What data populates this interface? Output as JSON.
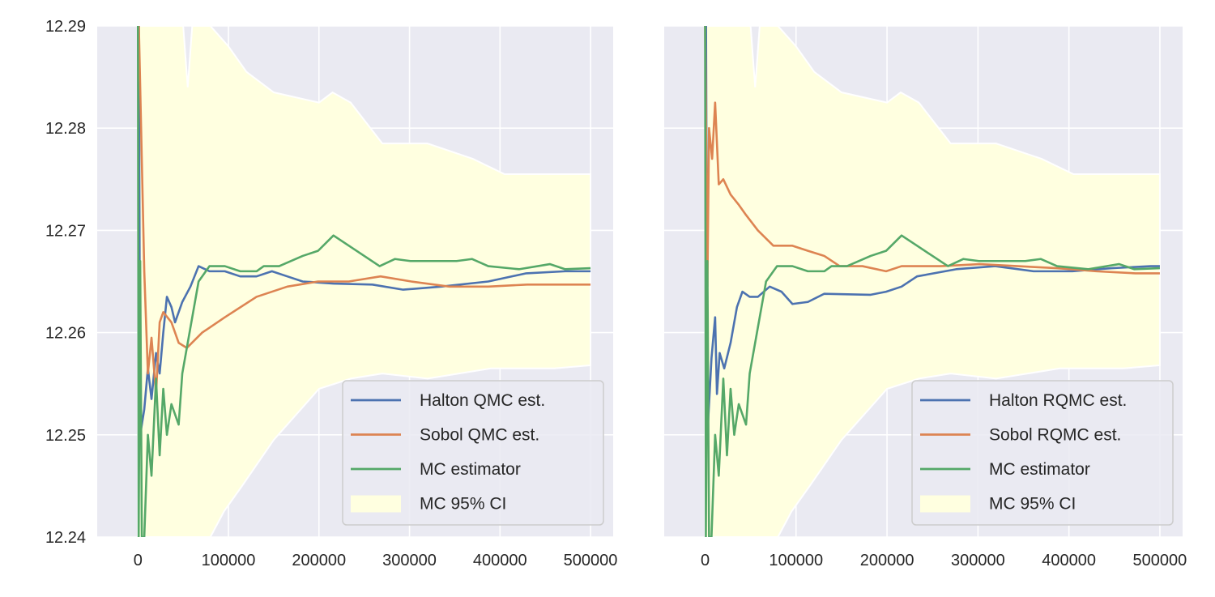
{
  "colors": {
    "background": "#eaeaf2",
    "grid": "#ffffff",
    "ci_fill": "#ffffe0",
    "blue": "#4c72b0",
    "orange": "#dd8452",
    "green": "#55a868"
  },
  "chart_data": [
    {
      "type": "line",
      "ylim": [
        12.24,
        12.29
      ],
      "xlim": [
        -45000,
        525000
      ],
      "grid": true,
      "legend_position": "lower-right",
      "yticks": [
        "12.24",
        "12.25",
        "12.26",
        "12.27",
        "12.28",
        "12.29"
      ],
      "xticks": [
        "0",
        "100000",
        "200000",
        "300000",
        "400000",
        "500000"
      ],
      "ci": {
        "name": "MC 95% CI",
        "upper": [
          [
            0,
            12.3
          ],
          [
            50000,
            12.3
          ],
          [
            55000,
            12.284
          ],
          [
            60000,
            12.29
          ],
          [
            80000,
            12.29
          ],
          [
            100000,
            12.288
          ],
          [
            120000,
            12.2855
          ],
          [
            150000,
            12.2835
          ],
          [
            200000,
            12.2825
          ],
          [
            215000,
            12.2835
          ],
          [
            235000,
            12.2825
          ],
          [
            270000,
            12.2785
          ],
          [
            320000,
            12.2785
          ],
          [
            370000,
            12.277
          ],
          [
            405000,
            12.2755
          ],
          [
            440000,
            12.2755
          ],
          [
            475000,
            12.2755
          ],
          [
            500000,
            12.2755
          ]
        ],
        "lower": [
          [
            0,
            12.23
          ],
          [
            80000,
            12.23
          ],
          [
            95000,
            12.2425
          ],
          [
            115000,
            12.245
          ],
          [
            150000,
            12.2495
          ],
          [
            200000,
            12.2545
          ],
          [
            235000,
            12.2555
          ],
          [
            270000,
            12.256
          ],
          [
            320000,
            12.2555
          ],
          [
            390000,
            12.2565
          ],
          [
            460000,
            12.2565
          ],
          [
            500000,
            12.2568
          ]
        ]
      },
      "series": [
        {
          "name": "Halton QMC est.",
          "color": "#4c72b0",
          "points": [
            [
              1000,
              12.29
            ],
            [
              2500,
              12.25
            ],
            [
              7000,
              12.2525
            ],
            [
              11000,
              12.2565
            ],
            [
              15000,
              12.2535
            ],
            [
              20000,
              12.258
            ],
            [
              24000,
              12.256
            ],
            [
              28000,
              12.26
            ],
            [
              32000,
              12.2635
            ],
            [
              37000,
              12.2625
            ],
            [
              41000,
              12.261
            ],
            [
              49000,
              12.263
            ],
            [
              58000,
              12.2645
            ],
            [
              67000,
              12.2665
            ],
            [
              79000,
              12.266
            ],
            [
              96000,
              12.266
            ],
            [
              113000,
              12.2655
            ],
            [
              131000,
              12.2655
            ],
            [
              148000,
              12.266
            ],
            [
              165000,
              12.2655
            ],
            [
              182000,
              12.265
            ],
            [
              216000,
              12.2648
            ],
            [
              259000,
              12.2647
            ],
            [
              293000,
              12.2642
            ],
            [
              335000,
              12.2645
            ],
            [
              387000,
              12.265
            ],
            [
              429000,
              12.2658
            ],
            [
              472000,
              12.266
            ],
            [
              500000,
              12.266
            ]
          ]
        },
        {
          "name": "Sobol QMC est.",
          "color": "#dd8452",
          "points": [
            [
              1000,
              12.29
            ],
            [
              3500,
              12.28
            ],
            [
              7000,
              12.266
            ],
            [
              11000,
              12.256
            ],
            [
              15000,
              12.2595
            ],
            [
              20000,
              12.254
            ],
            [
              24000,
              12.261
            ],
            [
              28000,
              12.262
            ],
            [
              37000,
              12.261
            ],
            [
              45000,
              12.259
            ],
            [
              54000,
              12.2585
            ],
            [
              71000,
              12.26
            ],
            [
              96000,
              12.2615
            ],
            [
              131000,
              12.2635
            ],
            [
              165000,
              12.2645
            ],
            [
              199000,
              12.265
            ],
            [
              233000,
              12.265
            ],
            [
              268000,
              12.2655
            ],
            [
              302000,
              12.265
            ],
            [
              344000,
              12.2645
            ],
            [
              387000,
              12.2645
            ],
            [
              430000,
              12.2647
            ],
            [
              500000,
              12.2647
            ]
          ]
        },
        {
          "name": "MC estimator",
          "color": "#55a868",
          "points": [
            [
              0,
              12.29
            ],
            [
              800,
              12.24
            ],
            [
              2500,
              12.267
            ],
            [
              4300,
              12.24
            ],
            [
              7000,
              12.24
            ],
            [
              11000,
              12.25
            ],
            [
              15000,
              12.246
            ],
            [
              20000,
              12.2555
            ],
            [
              24000,
              12.248
            ],
            [
              28000,
              12.2545
            ],
            [
              32000,
              12.25
            ],
            [
              37000,
              12.253
            ],
            [
              45000,
              12.251
            ],
            [
              49000,
              12.256
            ],
            [
              58000,
              12.2605
            ],
            [
              67000,
              12.265
            ],
            [
              79000,
              12.2665
            ],
            [
              96000,
              12.2665
            ],
            [
              113000,
              12.266
            ],
            [
              131000,
              12.266
            ],
            [
              139000,
              12.2665
            ],
            [
              156000,
              12.2665
            ],
            [
              182000,
              12.2675
            ],
            [
              199000,
              12.268
            ],
            [
              216000,
              12.2695
            ],
            [
              233000,
              12.2685
            ],
            [
              250000,
              12.2675
            ],
            [
              267000,
              12.2665
            ],
            [
              284000,
              12.2672
            ],
            [
              301000,
              12.267
            ],
            [
              327000,
              12.267
            ],
            [
              352000,
              12.267
            ],
            [
              369000,
              12.2672
            ],
            [
              387000,
              12.2665
            ],
            [
              421000,
              12.2662
            ],
            [
              455000,
              12.2667
            ],
            [
              472000,
              12.2662
            ],
            [
              500000,
              12.2663
            ]
          ]
        }
      ]
    },
    {
      "type": "line",
      "ylim": [
        12.24,
        12.29
      ],
      "xlim": [
        -45000,
        525000
      ],
      "grid": true,
      "legend_position": "lower-right",
      "xticks": [
        "0",
        "100000",
        "200000",
        "300000",
        "400000",
        "500000"
      ],
      "ci": {
        "name": "MC 95% CI",
        "upper": [
          [
            0,
            12.3
          ],
          [
            50000,
            12.3
          ],
          [
            55000,
            12.284
          ],
          [
            60000,
            12.29
          ],
          [
            80000,
            12.29
          ],
          [
            100000,
            12.288
          ],
          [
            120000,
            12.2855
          ],
          [
            150000,
            12.2835
          ],
          [
            200000,
            12.2825
          ],
          [
            215000,
            12.2835
          ],
          [
            235000,
            12.2825
          ],
          [
            270000,
            12.2785
          ],
          [
            320000,
            12.2785
          ],
          [
            370000,
            12.277
          ],
          [
            405000,
            12.2755
          ],
          [
            440000,
            12.2755
          ],
          [
            475000,
            12.2755
          ],
          [
            500000,
            12.2755
          ]
        ],
        "lower": [
          [
            0,
            12.23
          ],
          [
            80000,
            12.23
          ],
          [
            95000,
            12.2425
          ],
          [
            115000,
            12.245
          ],
          [
            150000,
            12.2495
          ],
          [
            200000,
            12.2545
          ],
          [
            235000,
            12.2555
          ],
          [
            270000,
            12.256
          ],
          [
            320000,
            12.2555
          ],
          [
            390000,
            12.2565
          ],
          [
            460000,
            12.2565
          ],
          [
            500000,
            12.2568
          ]
        ]
      },
      "series": [
        {
          "name": "Halton RQMC est.",
          "color": "#4c72b0",
          "points": [
            [
              1000,
              12.29
            ],
            [
              2500,
              12.25
            ],
            [
              7000,
              12.2575
            ],
            [
              11000,
              12.2615
            ],
            [
              13000,
              12.254
            ],
            [
              16000,
              12.258
            ],
            [
              21000,
              12.2565
            ],
            [
              28000,
              12.259
            ],
            [
              35000,
              12.2625
            ],
            [
              41000,
              12.264
            ],
            [
              49000,
              12.2635
            ],
            [
              58000,
              12.2635
            ],
            [
              71000,
              12.2645
            ],
            [
              84000,
              12.264
            ],
            [
              96000,
              12.2628
            ],
            [
              113000,
              12.263
            ],
            [
              131000,
              12.2638
            ],
            [
              182000,
              12.2637
            ],
            [
              199000,
              12.264
            ],
            [
              216000,
              12.2645
            ],
            [
              233000,
              12.2655
            ],
            [
              276000,
              12.2662
            ],
            [
              319000,
              12.2665
            ],
            [
              361000,
              12.266
            ],
            [
              404000,
              12.266
            ],
            [
              447000,
              12.2663
            ],
            [
              490000,
              12.2665
            ],
            [
              500000,
              12.2665
            ]
          ]
        },
        {
          "name": "Sobol RQMC est.",
          "color": "#dd8452",
          "points": [
            [
              0,
              12.29
            ],
            [
              2500,
              12.2645
            ],
            [
              4300,
              12.28
            ],
            [
              7700,
              12.277
            ],
            [
              11000,
              12.2825
            ],
            [
              15000,
              12.2745
            ],
            [
              20000,
              12.275
            ],
            [
              28000,
              12.2735
            ],
            [
              37000,
              12.2725
            ],
            [
              45000,
              12.2715
            ],
            [
              58000,
              12.27
            ],
            [
              75000,
              12.2685
            ],
            [
              96000,
              12.2685
            ],
            [
              113000,
              12.268
            ],
            [
              131000,
              12.2675
            ],
            [
              148000,
              12.2665
            ],
            [
              173000,
              12.2665
            ],
            [
              199000,
              12.266
            ],
            [
              216000,
              12.2665
            ],
            [
              259000,
              12.2665
            ],
            [
              302000,
              12.2667
            ],
            [
              344000,
              12.2665
            ],
            [
              387000,
              12.2663
            ],
            [
              430000,
              12.266
            ],
            [
              473000,
              12.2658
            ],
            [
              500000,
              12.2658
            ]
          ]
        },
        {
          "name": "MC estimator",
          "color": "#55a868",
          "points": [
            [
              0,
              12.29
            ],
            [
              800,
              12.24
            ],
            [
              2500,
              12.267
            ],
            [
              4300,
              12.24
            ],
            [
              7000,
              12.24
            ],
            [
              11000,
              12.25
            ],
            [
              15000,
              12.246
            ],
            [
              20000,
              12.2555
            ],
            [
              24000,
              12.248
            ],
            [
              28000,
              12.2545
            ],
            [
              32000,
              12.25
            ],
            [
              37000,
              12.253
            ],
            [
              45000,
              12.251
            ],
            [
              49000,
              12.256
            ],
            [
              58000,
              12.2605
            ],
            [
              67000,
              12.265
            ],
            [
              79000,
              12.2665
            ],
            [
              96000,
              12.2665
            ],
            [
              113000,
              12.266
            ],
            [
              131000,
              12.266
            ],
            [
              139000,
              12.2665
            ],
            [
              156000,
              12.2665
            ],
            [
              182000,
              12.2675
            ],
            [
              199000,
              12.268
            ],
            [
              216000,
              12.2695
            ],
            [
              233000,
              12.2685
            ],
            [
              250000,
              12.2675
            ],
            [
              267000,
              12.2665
            ],
            [
              284000,
              12.2672
            ],
            [
              301000,
              12.267
            ],
            [
              327000,
              12.267
            ],
            [
              352000,
              12.267
            ],
            [
              369000,
              12.2672
            ],
            [
              387000,
              12.2665
            ],
            [
              421000,
              12.2662
            ],
            [
              455000,
              12.2667
            ],
            [
              472000,
              12.2662
            ],
            [
              500000,
              12.2663
            ]
          ]
        }
      ]
    }
  ]
}
